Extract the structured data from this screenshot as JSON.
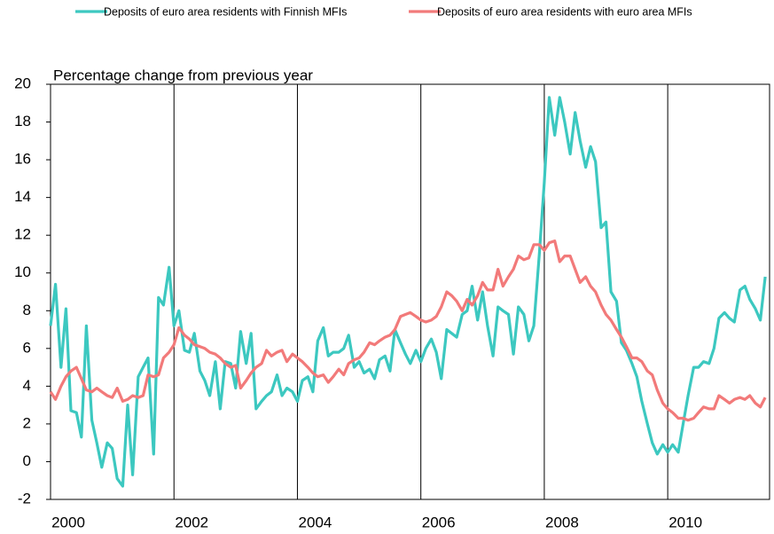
{
  "chart_data": {
    "type": "line",
    "title": "Percentage change from previous year",
    "x": [
      2000,
      2000.08,
      2000.17,
      2000.25,
      2000.33,
      2000.42,
      2000.5,
      2000.58,
      2000.67,
      2000.75,
      2000.83,
      2000.92,
      2001,
      2001.08,
      2001.17,
      2001.25,
      2001.33,
      2001.42,
      2001.5,
      2001.58,
      2001.67,
      2001.75,
      2001.83,
      2001.92,
      2002,
      2002.08,
      2002.17,
      2002.25,
      2002.33,
      2002.42,
      2002.5,
      2002.58,
      2002.67,
      2002.75,
      2002.83,
      2002.92,
      2003,
      2003.08,
      2003.17,
      2003.25,
      2003.33,
      2003.42,
      2003.5,
      2003.58,
      2003.67,
      2003.75,
      2003.83,
      2003.92,
      2004,
      2004.08,
      2004.17,
      2004.25,
      2004.33,
      2004.42,
      2004.5,
      2004.58,
      2004.67,
      2004.75,
      2004.83,
      2004.92,
      2005,
      2005.08,
      2005.17,
      2005.25,
      2005.33,
      2005.42,
      2005.5,
      2005.58,
      2005.67,
      2005.75,
      2005.83,
      2005.92,
      2006,
      2006.08,
      2006.17,
      2006.25,
      2006.33,
      2006.42,
      2006.5,
      2006.58,
      2006.67,
      2006.75,
      2006.83,
      2006.92,
      2007,
      2007.08,
      2007.17,
      2007.25,
      2007.33,
      2007.42,
      2007.5,
      2007.58,
      2007.67,
      2007.75,
      2007.83,
      2007.92,
      2008,
      2008.08,
      2008.17,
      2008.25,
      2008.33,
      2008.42,
      2008.5,
      2008.58,
      2008.67,
      2008.75,
      2008.83,
      2008.92,
      2009,
      2009.08,
      2009.17,
      2009.25,
      2009.33,
      2009.42,
      2009.5,
      2009.58,
      2009.67,
      2009.75,
      2009.83,
      2009.92,
      2010,
      2010.08,
      2010.17,
      2010.25,
      2010.33,
      2010.42,
      2010.5,
      2010.58,
      2010.67,
      2010.75,
      2010.83,
      2010.92,
      2011,
      2011.08,
      2011.17,
      2011.25,
      2011.33,
      2011.42,
      2011.5,
      2011.58
    ],
    "series": [
      {
        "name": "Deposits of euro area residents with Finnish MFIs",
        "color": "#3cc8c0",
        "values": [
          7.2,
          9.4,
          5.0,
          8.1,
          2.7,
          2.6,
          1.3,
          7.2,
          2.2,
          1.0,
          -0.3,
          1.0,
          0.7,
          -0.9,
          -1.3,
          3.0,
          -0.7,
          4.5,
          5.0,
          5.5,
          0.4,
          8.7,
          8.3,
          10.3,
          7.2,
          8.0,
          5.9,
          5.8,
          6.8,
          4.8,
          4.3,
          3.5,
          5.3,
          2.8,
          5.3,
          5.2,
          3.9,
          6.9,
          5.2,
          6.8,
          2.8,
          3.2,
          3.5,
          3.7,
          4.6,
          3.5,
          3.9,
          3.7,
          3.2,
          4.3,
          4.5,
          3.7,
          6.4,
          7.1,
          5.6,
          5.8,
          5.8,
          6.0,
          6.7,
          5.0,
          5.3,
          4.7,
          4.9,
          4.4,
          5.4,
          5.6,
          4.8,
          7.0,
          6.3,
          5.7,
          5.2,
          5.9,
          5.3,
          6.0,
          6.5,
          5.8,
          4.4,
          7.0,
          6.8,
          6.6,
          7.8,
          8.0,
          9.3,
          7.5,
          9.0,
          7.2,
          5.6,
          8.2,
          8.0,
          7.8,
          5.7,
          8.2,
          7.8,
          6.4,
          7.2,
          11.0,
          14.8,
          19.3,
          17.3,
          19.3,
          18.0,
          16.3,
          18.5,
          17.0,
          15.6,
          16.7,
          15.9,
          12.4,
          12.7,
          9.0,
          8.5,
          6.3,
          5.9,
          5.2,
          4.5,
          3.2,
          2.0,
          1.0,
          0.4,
          0.9,
          0.5,
          0.9,
          0.5,
          2.0,
          3.5,
          5.0,
          5.0,
          5.3,
          5.2,
          6.0,
          7.6,
          7.9,
          7.6,
          7.4,
          9.1,
          9.3,
          8.6,
          8.1,
          7.5,
          9.8
        ]
      },
      {
        "name": "Deposits of euro area residents with euro area MFIs",
        "color": "#f27a7a",
        "values": [
          3.7,
          3.3,
          4.0,
          4.5,
          4.8,
          5.0,
          4.4,
          3.8,
          3.7,
          3.9,
          3.7,
          3.5,
          3.4,
          3.9,
          3.2,
          3.3,
          3.5,
          3.4,
          3.5,
          4.6,
          4.5,
          4.6,
          5.5,
          5.8,
          6.2,
          7.1,
          6.7,
          6.5,
          6.2,
          6.1,
          6.0,
          5.8,
          5.7,
          5.5,
          5.2,
          5.0,
          5.1,
          3.9,
          4.3,
          4.7,
          5.0,
          5.2,
          5.9,
          5.6,
          5.8,
          5.9,
          5.3,
          5.7,
          5.5,
          5.3,
          5.0,
          4.7,
          4.5,
          4.6,
          4.2,
          4.5,
          4.9,
          4.6,
          5.2,
          5.4,
          5.5,
          5.8,
          6.3,
          6.2,
          6.4,
          6.6,
          6.7,
          7.0,
          7.7,
          7.8,
          7.9,
          7.7,
          7.5,
          7.4,
          7.5,
          7.7,
          8.2,
          9.0,
          8.8,
          8.5,
          8.0,
          8.6,
          8.3,
          8.8,
          9.5,
          9.1,
          9.1,
          10.2,
          9.3,
          9.8,
          10.2,
          10.9,
          10.7,
          10.8,
          11.5,
          11.5,
          11.2,
          11.6,
          11.7,
          10.6,
          10.9,
          10.9,
          10.2,
          9.5,
          9.8,
          9.3,
          9.0,
          8.3,
          7.8,
          7.5,
          7.0,
          6.6,
          6.1,
          5.5,
          5.5,
          5.3,
          4.8,
          4.6,
          3.8,
          3.1,
          2.8,
          2.6,
          2.3,
          2.3,
          2.2,
          2.3,
          2.6,
          2.9,
          2.8,
          2.8,
          3.5,
          3.3,
          3.1,
          3.3,
          3.4,
          3.3,
          3.5,
          3.1,
          2.9,
          3.4
        ]
      }
    ],
    "xlim": [
      2000,
      2011.65
    ],
    "xticks": [
      2000,
      2002,
      2004,
      2006,
      2008,
      2010
    ],
    "ylim": [
      -2,
      20
    ],
    "yticks": [
      -2,
      0,
      2,
      4,
      6,
      8,
      10,
      12,
      14,
      16,
      18,
      20
    ],
    "grid": "x",
    "legend": "top"
  }
}
